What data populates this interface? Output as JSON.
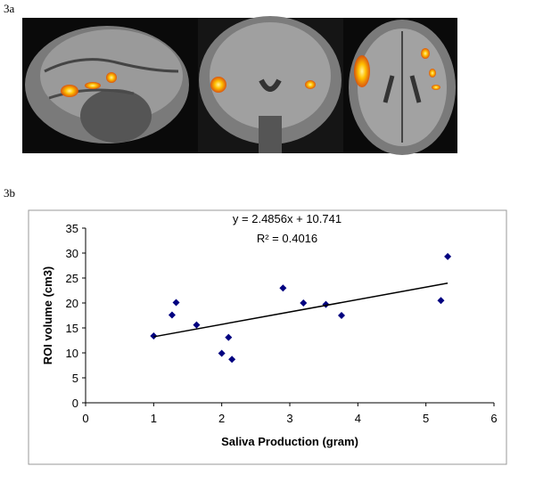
{
  "panel_labels": [
    "3a",
    "3b"
  ],
  "chart_data": {
    "type": "scatter",
    "equation_label": "y = 2.4856x + 10.741",
    "r_squared_label": "R² = 0.4016",
    "x_label": "Saliva Production (gram)",
    "y_label": "ROI volume (cm3)",
    "x": [
      1.0,
      1.27,
      1.33,
      1.63,
      2.0,
      2.1,
      2.15,
      2.9,
      3.2,
      3.53,
      3.76,
      5.22,
      5.32
    ],
    "values": [
      13.4,
      17.6,
      20.1,
      15.6,
      9.9,
      13.1,
      8.7,
      23.0,
      20.0,
      19.7,
      17.5,
      20.5,
      29.3
    ],
    "color": "#000080",
    "trendline": {
      "slope": 2.4856,
      "intercept": 10.741,
      "color": "#000000"
    },
    "xlim": [
      0,
      6
    ],
    "xticks": [
      0,
      1,
      2,
      3,
      4,
      5,
      6
    ],
    "ylim": [
      0,
      35
    ],
    "yticks": [
      0,
      5,
      10,
      15,
      20,
      25,
      30,
      35
    ],
    "grid": false
  }
}
